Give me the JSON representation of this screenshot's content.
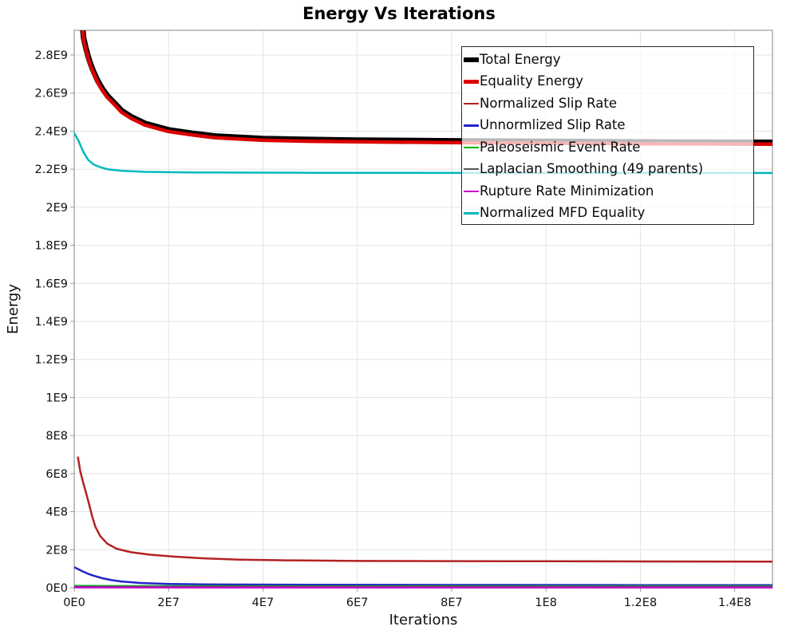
{
  "title": "Energy Vs Iterations",
  "chart_data": {
    "type": "line",
    "title": "Energy Vs Iterations",
    "xlabel": "Iterations",
    "ylabel": "Energy",
    "xlim": [
      0,
      148000000
    ],
    "ylim": [
      0,
      2930000000
    ],
    "grid": true,
    "legend_position": "top-right",
    "x_ticks": [
      {
        "label": "0E0",
        "value": 0
      },
      {
        "label": "2E7",
        "value": 20000000
      },
      {
        "label": "4E7",
        "value": 40000000
      },
      {
        "label": "6E7",
        "value": 60000000
      },
      {
        "label": "8E7",
        "value": 80000000
      },
      {
        "label": "1E8",
        "value": 100000000
      },
      {
        "label": "1.2E8",
        "value": 120000000
      },
      {
        "label": "1.4E8",
        "value": 140000000
      }
    ],
    "y_ticks": [
      {
        "label": "0E0",
        "value": 0
      },
      {
        "label": "2E8",
        "value": 200000000
      },
      {
        "label": "4E8",
        "value": 400000000
      },
      {
        "label": "6E8",
        "value": 600000000
      },
      {
        "label": "8E8",
        "value": 800000000
      },
      {
        "label": "1E9",
        "value": 1000000000
      },
      {
        "label": "1.2E9",
        "value": 1200000000
      },
      {
        "label": "1.4E9",
        "value": 1400000000
      },
      {
        "label": "1.6E9",
        "value": 1600000000
      },
      {
        "label": "1.8E9",
        "value": 1800000000
      },
      {
        "label": "2E9",
        "value": 2000000000
      },
      {
        "label": "2.2E9",
        "value": 2200000000
      },
      {
        "label": "2.4E9",
        "value": 2400000000
      },
      {
        "label": "2.6E9",
        "value": 2600000000
      },
      {
        "label": "2.8E9",
        "value": 2800000000
      }
    ],
    "series": [
      {
        "name": "Total Energy",
        "color": "#000000",
        "width": 7,
        "x": [
          1400000.0,
          1700000.0,
          2000000.0,
          2500000.0,
          3000000.0,
          3500000.0,
          4000000.0,
          5000000.0,
          6000000.0,
          7000000.0,
          8500000.0,
          10000000.0,
          12000000.0,
          15000000.0,
          20000000.0,
          25000000.0,
          30000000.0,
          40000000.0,
          50000000.0,
          60000000.0,
          80000000.0,
          100000000.0,
          120000000.0,
          148000000.0
        ],
        "y": [
          3060000000.0,
          2964000000.0,
          2889000000.0,
          2834000000.0,
          2789000000.0,
          2751000000.0,
          2719000000.0,
          2664000000.0,
          2622000000.0,
          2587000000.0,
          2549000000.0,
          2509000000.0,
          2477000000.0,
          2441000000.0,
          2407000000.0,
          2389000000.0,
          2374000000.0,
          2361000000.0,
          2356000000.0,
          2353000000.0,
          2349000000.0,
          2346000000.0,
          2343000000.0,
          2341000000.0
        ]
      },
      {
        "name": "Equality Energy",
        "color": "#DB0000",
        "width": 4.5,
        "x": [
          1400000.0,
          1700000.0,
          2000000.0,
          2500000.0,
          3000000.0,
          3500000.0,
          4000000.0,
          5000000.0,
          6000000.0,
          7000000.0,
          8500000.0,
          10000000.0,
          12000000.0,
          15000000.0,
          20000000.0,
          25000000.0,
          30000000.0,
          40000000.0,
          50000000.0,
          60000000.0,
          80000000.0,
          100000000.0,
          120000000.0,
          148000000.0
        ],
        "y": [
          3050000000.0,
          2955000000.0,
          2880000000.0,
          2825000000.0,
          2780000000.0,
          2742000000.0,
          2710000000.0,
          2655000000.0,
          2613000000.0,
          2578000000.0,
          2540000000.0,
          2500000000.0,
          2468000000.0,
          2432000000.0,
          2398000000.0,
          2380000000.0,
          2365000000.0,
          2352000000.0,
          2347000000.0,
          2344000000.0,
          2340000000.0,
          2337000000.0,
          2334000000.0,
          2332000000.0
        ]
      },
      {
        "name": "Normalized Slip Rate",
        "color": "#B22222",
        "width": 2.5,
        "x": [
          800000.0,
          1300000.0,
          2000000.0,
          2600000.0,
          3200000.0,
          3800000.0,
          4500000.0,
          5500000.0,
          7000000.0,
          9000000.0,
          12000000.0,
          16000000.0,
          21000000.0,
          28000000.0,
          35000000.0,
          45000000.0,
          60000000.0,
          80000000.0,
          100000000.0,
          120000000.0,
          148000000.0
        ],
        "y": [
          685000000.0,
          610000000.0,
          544000000.0,
          490000000.0,
          435000000.0,
          375000000.0,
          320000000.0,
          272000000.0,
          232000000.0,
          205000000.0,
          187000000.0,
          174000000.0,
          164000000.0,
          154000000.0,
          148000000.0,
          144000000.0,
          141000000.0,
          140000000.0,
          139000000.0,
          138500000.0,
          137000000.0
        ]
      },
      {
        "name": "Unnormlized Slip Rate",
        "color": "#2323C8",
        "width": 2.5,
        "x": [
          0,
          1000000.0,
          2000000.0,
          3000000.0,
          4000000.0,
          6000000.0,
          8000000.0,
          10000000.0,
          14000000.0,
          20000000.0,
          30000000.0,
          50000000.0,
          80000000.0,
          120000000.0,
          148000000.0
        ],
        "y": [
          108000000.0,
          96000000.0,
          84000000.0,
          73000000.0,
          64000000.0,
          50000000.0,
          40000000.0,
          33000000.0,
          25000000.0,
          20000000.0,
          17000000.0,
          15500000.0,
          14500000.0,
          14000000.0,
          14000000.0
        ]
      },
      {
        "name": "Paleoseismic Event Rate",
        "color": "#00B41E",
        "width": 2.4,
        "x": [
          0,
          20000000.0,
          148000000.0
        ],
        "y": [
          10000000.0,
          8500000.0,
          8000000.0
        ]
      },
      {
        "name": "Laplacian Smoothing (49 parents)",
        "color": "#565656",
        "width": 2.2,
        "x": [
          0,
          148000000.0
        ],
        "y": [
          5000000.0,
          4500000.0
        ]
      },
      {
        "name": "Rupture Rate Minimization",
        "color": "#C800C8",
        "width": 2.4,
        "x": [
          0,
          148000000.0
        ],
        "y": [
          1500000.0,
          1200000.0
        ]
      },
      {
        "name": "Normalized MFD Equality",
        "color": "#00B9BE",
        "width": 2.5,
        "x": [
          0,
          1000000.0,
          2000000.0,
          3000000.0,
          4000000.0,
          5000000.0,
          7000000.0,
          10000000.0,
          15000000.0,
          25000000.0,
          50000000.0,
          100000000.0,
          148000000.0
        ],
        "y": [
          2390000000.0,
          2345000000.0,
          2288000000.0,
          2248000000.0,
          2227000000.0,
          2215000000.0,
          2200000000.0,
          2192000000.0,
          2186000000.0,
          2183000000.0,
          2181000000.0,
          2180000000.0,
          2180000000.0
        ]
      }
    ]
  }
}
